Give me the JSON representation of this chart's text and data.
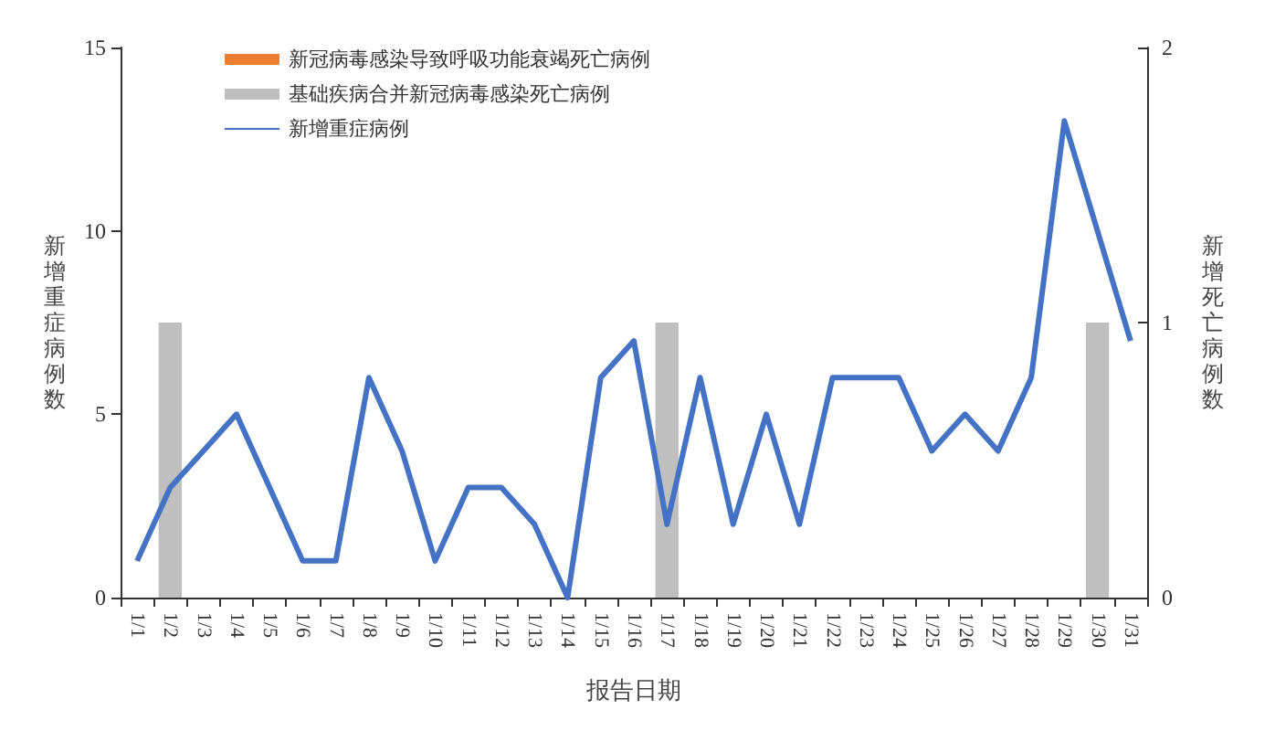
{
  "chart_data": {
    "type": "bar",
    "xlabel": "报告日期",
    "ylabel": "新增重症病例数",
    "y2label": "新增死亡病例数",
    "categories": [
      "1/1",
      "1/2",
      "1/3",
      "1/4",
      "1/5",
      "1/6",
      "1/7",
      "1/8",
      "1/9",
      "1/10",
      "1/11",
      "1/12",
      "1/13",
      "1/14",
      "1/15",
      "1/16",
      "1/17",
      "1/18",
      "1/19",
      "1/20",
      "1/21",
      "1/22",
      "1/23",
      "1/24",
      "1/25",
      "1/26",
      "1/27",
      "1/28",
      "1/29",
      "1/30",
      "1/31"
    ],
    "series": [
      {
        "name": "新冠病毒感染导致呼吸功能衰竭死亡病例",
        "axis": "y2",
        "color": "#ed7d31",
        "values": [
          null,
          null,
          null,
          null,
          null,
          null,
          null,
          null,
          null,
          null,
          null,
          null,
          null,
          null,
          null,
          null,
          null,
          null,
          null,
          null,
          null,
          null,
          null,
          null,
          null,
          null,
          null,
          null,
          null,
          null,
          null
        ]
      },
      {
        "name": "基础疾病合并新冠病毒感染死亡病例",
        "axis": "y2",
        "color": "#bfbfbf",
        "values": [
          null,
          1,
          null,
          null,
          null,
          null,
          null,
          null,
          null,
          null,
          null,
          null,
          null,
          null,
          null,
          null,
          1,
          null,
          null,
          null,
          null,
          null,
          null,
          null,
          null,
          null,
          null,
          null,
          null,
          1,
          null
        ]
      },
      {
        "name": "新增重症病例",
        "type": "line",
        "color": "#4472c4",
        "values": [
          1,
          3,
          4,
          5,
          3,
          1,
          1,
          6,
          4,
          1,
          3,
          3,
          2,
          0,
          6,
          7,
          2,
          6,
          2,
          5,
          2,
          6,
          6,
          6,
          4,
          5,
          4,
          6,
          13,
          10,
          7
        ]
      }
    ],
    "ylim": [
      0,
      15
    ],
    "yticks": [
      0,
      5,
      10,
      15
    ],
    "y2lim": [
      0,
      2
    ],
    "y2ticks": [
      0,
      1,
      2
    ],
    "grid": false,
    "legend": "top left",
    "marker": "none",
    "line_style": "solid"
  }
}
